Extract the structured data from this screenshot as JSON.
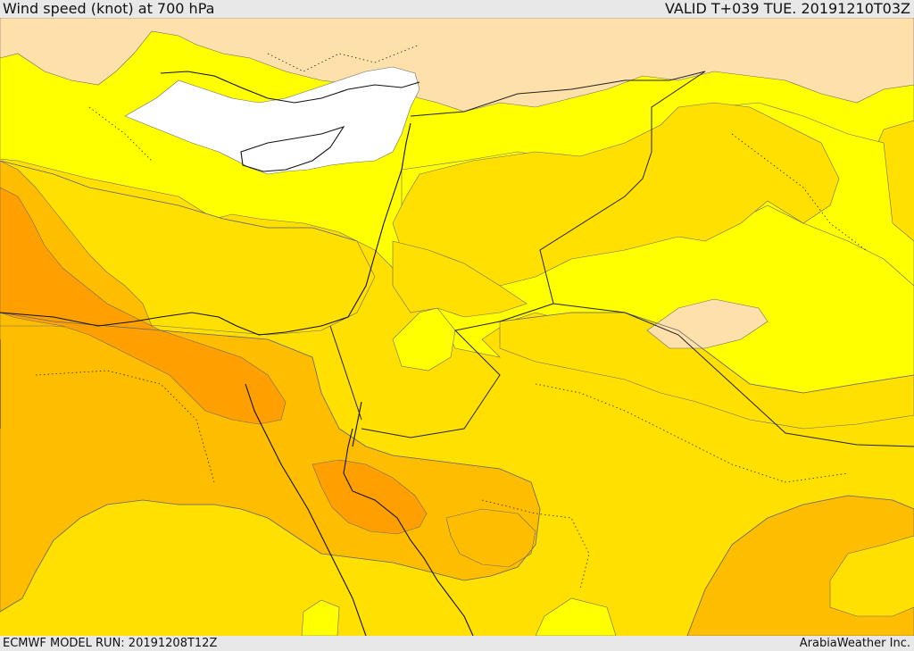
{
  "header": {
    "title": "Wind speed (knot) at 700 hPa",
    "valid": "VALID T+039 TUE. 20191210T03Z"
  },
  "footer": {
    "model_run": "ECMWF MODEL RUN: 20191208T12Z",
    "credit": "ArabiaWeather Inc."
  },
  "map": {
    "palette": {
      "calm": "#ffffff",
      "light": "#fde0aa",
      "yellow": "#ffff00",
      "gold": "#ffe000",
      "amber": "#ffbd00",
      "orange": "#ffa000",
      "coast": "#111111",
      "border": "#222222",
      "contour": "#6b6b6b"
    }
  }
}
